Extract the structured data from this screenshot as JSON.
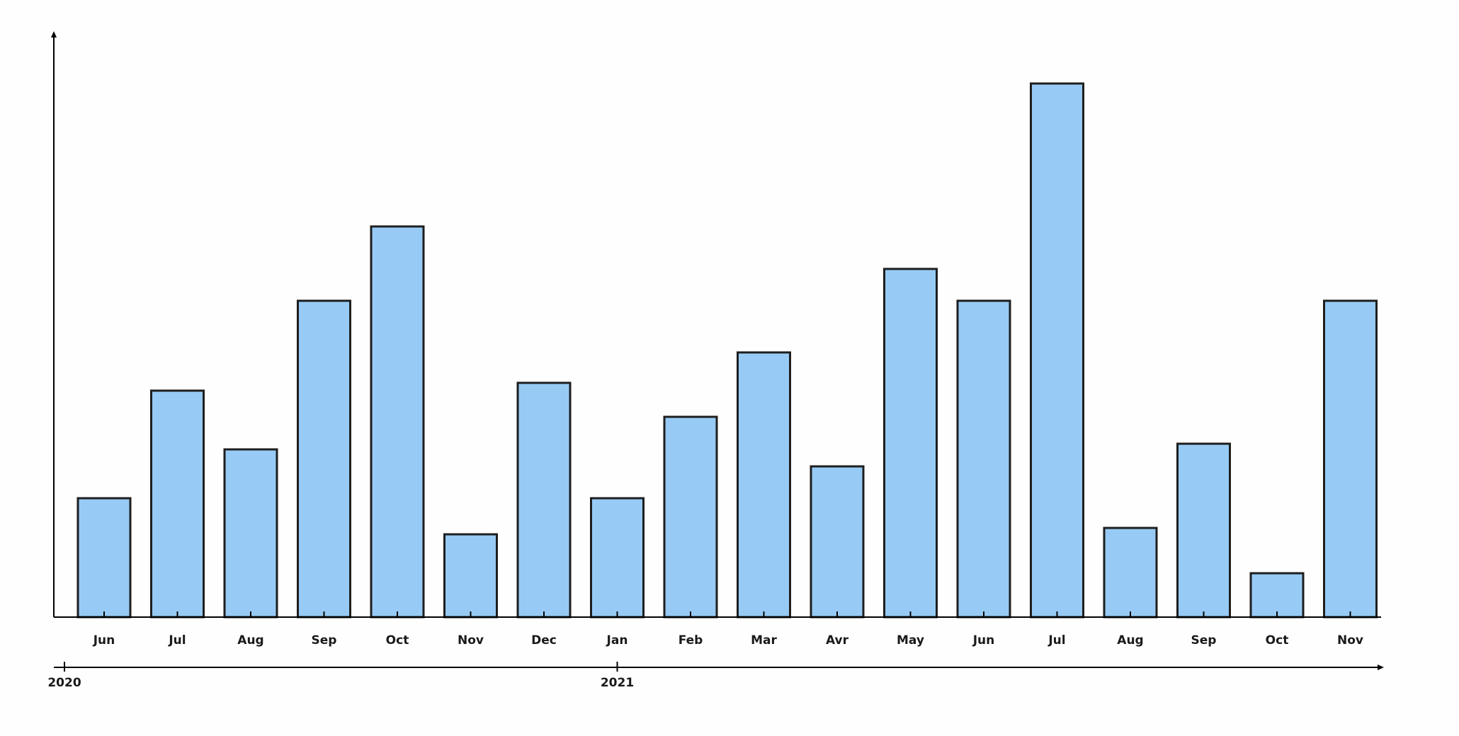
{
  "chart_data": {
    "type": "bar",
    "categories": [
      "Jun",
      "Jul",
      "Aug",
      "Sep",
      "Oct",
      "Nov",
      "Dec",
      "Jan",
      "Feb",
      "Mar",
      "Avr",
      "May",
      "Jun",
      "Jul",
      "Aug",
      "Sep",
      "Oct",
      "Nov"
    ],
    "values": [
      168,
      320,
      237,
      447,
      552,
      117,
      331,
      168,
      283,
      374,
      213,
      492,
      447,
      754,
      126,
      245,
      62,
      447
    ],
    "years": [
      {
        "label": "2020",
        "start_index": 0
      },
      {
        "label": "2021",
        "start_index": 7
      }
    ],
    "ylim": [
      0,
      825
    ],
    "grid": false,
    "y_tick_labels": false,
    "title": "",
    "xlabel": "",
    "ylabel": "",
    "colors": {
      "bar_fill": "#97cbf5",
      "bar_stroke": "#1e1e1e",
      "axis": "#000000",
      "text": "#1a1a1a"
    }
  }
}
